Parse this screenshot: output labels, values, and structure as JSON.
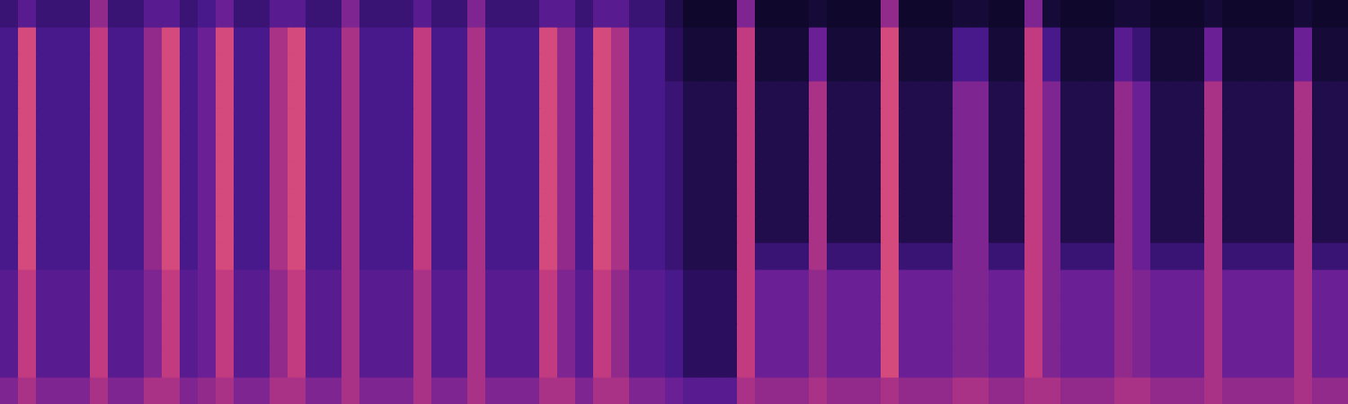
{
  "chart_data": {
    "type": "heatmap",
    "x": [
      0,
      1,
      2,
      3,
      4,
      5,
      6,
      7,
      8,
      9,
      10,
      11,
      12,
      13,
      14,
      15,
      16,
      17,
      18,
      19,
      20,
      21,
      22,
      23,
      24,
      25,
      26,
      27,
      28,
      29,
      30,
      31,
      32,
      33,
      34,
      35,
      36,
      37,
      38,
      39,
      40,
      41,
      42,
      43,
      44,
      45,
      46,
      47,
      48,
      49,
      50,
      51,
      52,
      53,
      54,
      55,
      56,
      57,
      58,
      59,
      60,
      61,
      62,
      63,
      64,
      65,
      66,
      67,
      68,
      69,
      70,
      71,
      72,
      73,
      74
    ],
    "y": [
      0,
      1,
      2,
      3,
      4,
      5,
      6,
      7,
      8,
      9,
      10,
      11,
      12,
      13,
      14
    ],
    "xlim": [
      -0.5,
      74.5
    ],
    "ylim": [
      -0.5,
      14.5
    ],
    "zlim": [
      0,
      10
    ],
    "grid": false,
    "tick_labels": false,
    "cells": [
      [
        4.5,
        5.5,
        4.5,
        4.5,
        4.5,
        5.5,
        4.5,
        4.5,
        5.5,
        5.5,
        4.5,
        5,
        5.5,
        4.5,
        4.5,
        5.5,
        5.5,
        4.5,
        4.5,
        5.5,
        4.5,
        4.5,
        4.5,
        5.5,
        4.5,
        4.5,
        5.5,
        4.5,
        4.5,
        4.5,
        5.5,
        5.5,
        4.5,
        5.5,
        5.5,
        4.5,
        4.5,
        4,
        3.5,
        3.5,
        3.5,
        5.5,
        5,
        5,
        5,
        5.5,
        5,
        5,
        5,
        5.5,
        5,
        5,
        5,
        5.5,
        5.5,
        5,
        5,
        5.5,
        5.5,
        5,
        5,
        5,
        5.5,
        5.5,
        5,
        5,
        5,
        5.5,
        5,
        5,
        5,
        5,
        5.5,
        5,
        5
      ],
      [
        3.5,
        6,
        3.5,
        3.5,
        3.5,
        6,
        3.5,
        3.5,
        4.5,
        6,
        3.5,
        4,
        6,
        3.5,
        3.5,
        5,
        6,
        3.5,
        3.5,
        5.5,
        3.5,
        3.5,
        3.5,
        5.5,
        3.5,
        3.5,
        5.5,
        3.5,
        3.5,
        3.5,
        6,
        4.5,
        3.5,
        6,
        5,
        3.5,
        3.5,
        3,
        2,
        2,
        2,
        6,
        4,
        4,
        4,
        5,
        4,
        4,
        4,
        6.5,
        4,
        4,
        4,
        4.5,
        4.5,
        4,
        4,
        6,
        4.5,
        4,
        4,
        4,
        5,
        4.5,
        4,
        4,
        4,
        5.5,
        4,
        4,
        4,
        4,
        5.5,
        4,
        4
      ],
      [
        3.5,
        6,
        3.5,
        3.5,
        3.5,
        6,
        3.5,
        3.5,
        4.5,
        6,
        3.5,
        4,
        6,
        3.5,
        3.5,
        5,
        6,
        3.5,
        3.5,
        5.5,
        3.5,
        3.5,
        3.5,
        5.5,
        3.5,
        3.5,
        5.5,
        3.5,
        3.5,
        3.5,
        6,
        4.5,
        3.5,
        6,
        5,
        3.5,
        3.5,
        3,
        2,
        2,
        2,
        6,
        4,
        4,
        4,
        5,
        4,
        4,
        4,
        6.5,
        4,
        4,
        4,
        4.5,
        4.5,
        4,
        4,
        6,
        4.5,
        4,
        4,
        4,
        5,
        4.5,
        4,
        4,
        4,
        5.5,
        4,
        4,
        4,
        4,
        5.5,
        4,
        4
      ],
      [
        3.5,
        6,
        3.5,
        3.5,
        3.5,
        6,
        3.5,
        3.5,
        4.5,
        6,
        3.5,
        4,
        6,
        3.5,
        3.5,
        5,
        6,
        3.5,
        3.5,
        5.5,
        3.5,
        3.5,
        3.5,
        5.5,
        3.5,
        3.5,
        5.5,
        3.5,
        3.5,
        3.5,
        6,
        4.5,
        3.5,
        6,
        5,
        3.5,
        3.5,
        3,
        2,
        2,
        2,
        6,
        4,
        4,
        4,
        5,
        4,
        4,
        4,
        6.5,
        4,
        4,
        4,
        4.5,
        4.5,
        4,
        4,
        6,
        4.5,
        4,
        4,
        4,
        5,
        4.5,
        4,
        4,
        4,
        5.5,
        4,
        4,
        4,
        4,
        5.5,
        4,
        4
      ],
      [
        3.5,
        6,
        3.5,
        3.5,
        3.5,
        6,
        3.5,
        3.5,
        4.5,
        6,
        3.5,
        4,
        6,
        3.5,
        3.5,
        5,
        6,
        3.5,
        3.5,
        5.5,
        3.5,
        3.5,
        3.5,
        5.5,
        3.5,
        3.5,
        5.5,
        3.5,
        3.5,
        3.5,
        6,
        4.5,
        3.5,
        6,
        5,
        3.5,
        3.5,
        3,
        2,
        2,
        2,
        6,
        4,
        4,
        4,
        5,
        4,
        4,
        4,
        6.5,
        4,
        4,
        4,
        4.5,
        4.5,
        4,
        4,
        6,
        4.5,
        4,
        4,
        4,
        5,
        4.5,
        4,
        4,
        4,
        5.5,
        4,
        4,
        4,
        4,
        5.5,
        4,
        4
      ],
      [
        3,
        6.5,
        3,
        3,
        3,
        6,
        3,
        3,
        5,
        6.5,
        3,
        4,
        6.5,
        3,
        3,
        5.5,
        6.5,
        3,
        3,
        5.5,
        3,
        3,
        3,
        6,
        3,
        3,
        5.5,
        3,
        3,
        3,
        6.5,
        5,
        3,
        6.5,
        5.5,
        3,
        3,
        2.5,
        1.5,
        1.5,
        1.5,
        6,
        2.5,
        2.5,
        2.5,
        5.5,
        2.5,
        2.5,
        2.5,
        6.5,
        2.5,
        2.5,
        2.5,
        4.5,
        4.5,
        2.5,
        2.5,
        6,
        4.5,
        2.5,
        2.5,
        2.5,
        5,
        4,
        2.5,
        2.5,
        2.5,
        5.5,
        2.5,
        2.5,
        2.5,
        2.5,
        5.5,
        2.5,
        2.5
      ],
      [
        3,
        6.5,
        3,
        3,
        3,
        6,
        3,
        3,
        5,
        6.5,
        3,
        4,
        6.5,
        3,
        3,
        5.5,
        6.5,
        3,
        3,
        5.5,
        3,
        3,
        3,
        6,
        3,
        3,
        5.5,
        3,
        3,
        3,
        6.5,
        5,
        3,
        6.5,
        5.5,
        3,
        3,
        2.5,
        1.5,
        1.5,
        1.5,
        6,
        1.5,
        1.5,
        1.5,
        5.5,
        1.5,
        1.5,
        1.5,
        6.5,
        1.5,
        1.5,
        1.5,
        4.5,
        4.5,
        1.5,
        1.5,
        6,
        4.5,
        1.5,
        1.5,
        1.5,
        5,
        4,
        1.5,
        1.5,
        1.5,
        5.5,
        1.5,
        1.5,
        1.5,
        1.5,
        5.5,
        1.5,
        1.5
      ],
      [
        3,
        6.5,
        3,
        3,
        3,
        6,
        3,
        3,
        5,
        6.5,
        3,
        4,
        6.5,
        3,
        3,
        5.5,
        6.5,
        3,
        3,
        5.5,
        3,
        3,
        3,
        6,
        3,
        3,
        5.5,
        3,
        3,
        3,
        6.5,
        5,
        3,
        6.5,
        5.5,
        3,
        3,
        2.5,
        1.5,
        1.5,
        1.5,
        6,
        1.5,
        1.5,
        1.5,
        5.5,
        1.5,
        1.5,
        1.5,
        6.5,
        1.5,
        1.5,
        1.5,
        4.5,
        4.5,
        1.5,
        1.5,
        6,
        4.5,
        1.5,
        1.5,
        1.5,
        5,
        4,
        1.5,
        1.5,
        1.5,
        5.5,
        1.5,
        1.5,
        1.5,
        1.5,
        5.5,
        1.5,
        1.5
      ],
      [
        3,
        6.5,
        3,
        3,
        3,
        6,
        3,
        3,
        5,
        6.5,
        3,
        4,
        6.5,
        3,
        3,
        5.5,
        6.5,
        3,
        3,
        5.5,
        3,
        3,
        3,
        6,
        3,
        3,
        5.5,
        3,
        3,
        3,
        6.5,
        5,
        3,
        6.5,
        5.5,
        3,
        3,
        2.5,
        1.5,
        1.5,
        1.5,
        6,
        1.5,
        1.5,
        1.5,
        5.5,
        1.5,
        1.5,
        1.5,
        6.5,
        1.5,
        1.5,
        1.5,
        4.5,
        4.5,
        1.5,
        1.5,
        6,
        4.5,
        1.5,
        1.5,
        1.5,
        5,
        4,
        1.5,
        1.5,
        1.5,
        5.5,
        1.5,
        1.5,
        1.5,
        1.5,
        5.5,
        1.5,
        1.5
      ],
      [
        3,
        6.5,
        3,
        3,
        3,
        6,
        3,
        3,
        5,
        6.5,
        3,
        4,
        6.5,
        3,
        3,
        5.5,
        6.5,
        3,
        3,
        5.5,
        3,
        3,
        3,
        6,
        3,
        3,
        5.5,
        3,
        3,
        3,
        6.5,
        5,
        3,
        6.5,
        5.5,
        3,
        3,
        2.5,
        1.5,
        1.5,
        1.5,
        6,
        1.5,
        1.5,
        1.5,
        5.5,
        1.5,
        1.5,
        1.5,
        6.5,
        1.5,
        1.5,
        1.5,
        4.5,
        4.5,
        1.5,
        1.5,
        6,
        4.5,
        1.5,
        1.5,
        1.5,
        5,
        4,
        1.5,
        1.5,
        1.5,
        5.5,
        1.5,
        1.5,
        1.5,
        1.5,
        5.5,
        1.5,
        1.5
      ],
      [
        3,
        6.5,
        3,
        3,
        3,
        6,
        3,
        3,
        5,
        6.5,
        3,
        4,
        6.5,
        3,
        3,
        5.5,
        6.5,
        3,
        3,
        5.5,
        3,
        3,
        3,
        6,
        3,
        3,
        5.5,
        3,
        3,
        3,
        6.5,
        5,
        3,
        6.5,
        5.5,
        3,
        3,
        2.5,
        1.5,
        1.5,
        1.5,
        6,
        1.5,
        1.5,
        1.5,
        5.5,
        1.5,
        1.5,
        1.5,
        6.5,
        1.5,
        1.5,
        1.5,
        4.5,
        4.5,
        1.5,
        1.5,
        6,
        4.5,
        1.5,
        1.5,
        1.5,
        5,
        4,
        1.5,
        1.5,
        1.5,
        5.5,
        1.5,
        1.5,
        1.5,
        1.5,
        5.5,
        1.5,
        1.5
      ],
      [
        3,
        6.5,
        3,
        3,
        3,
        6,
        3,
        3,
        5,
        6.5,
        3,
        4,
        6.5,
        3,
        3,
        5.5,
        6.5,
        3,
        3,
        5.5,
        3,
        3,
        3,
        6,
        3,
        3,
        5.5,
        3,
        3,
        3,
        6.5,
        5,
        3,
        6.5,
        5.5,
        3,
        3,
        2.5,
        1.5,
        1.5,
        1.5,
        6,
        1.5,
        1.5,
        1.5,
        5.5,
        1.5,
        1.5,
        1.5,
        6.5,
        1.5,
        1.5,
        1.5,
        4.5,
        4.5,
        1.5,
        1.5,
        6,
        4.5,
        1.5,
        1.5,
        1.5,
        5,
        4,
        1.5,
        1.5,
        1.5,
        5.5,
        1.5,
        1.5,
        1.5,
        1.5,
        5.5,
        1.5,
        1.5
      ],
      [
        3,
        6.5,
        3,
        3,
        3,
        6,
        3,
        3,
        5,
        6.5,
        3,
        4,
        6.5,
        3,
        3,
        5.5,
        6.5,
        3,
        3,
        5.5,
        3,
        3,
        3,
        6,
        3,
        3,
        5.5,
        3,
        3,
        3,
        6.5,
        5,
        3,
        6.5,
        5.5,
        3,
        3,
        2,
        1,
        1,
        1,
        6,
        1,
        1,
        1,
        4,
        1,
        1,
        1,
        6.5,
        1,
        1,
        1,
        3,
        3,
        1,
        1,
        6,
        3,
        1,
        1,
        1,
        3.5,
        2.5,
        1,
        1,
        1,
        4,
        1,
        1,
        1,
        1,
        4,
        1,
        1
      ],
      [
        3,
        6.5,
        3,
        3,
        3,
        6,
        3,
        3,
        5,
        6.5,
        3,
        4,
        6.5,
        3,
        3,
        5.5,
        6.5,
        3,
        3,
        5.5,
        3,
        3,
        3,
        6,
        3,
        3,
        5.5,
        3,
        3,
        3,
        6.5,
        5,
        3,
        6.5,
        5.5,
        3,
        3,
        2,
        1,
        1,
        1,
        6,
        1,
        1,
        1,
        4,
        1,
        1,
        1,
        6.5,
        1,
        1,
        1,
        3,
        3,
        1,
        1,
        6,
        3,
        1,
        1,
        1,
        3.5,
        2.5,
        1,
        1,
        1,
        4,
        1,
        1,
        1,
        1,
        4,
        1,
        1
      ],
      [
        2.5,
        3.5,
        2.5,
        2.5,
        2.5,
        5,
        2.5,
        2.5,
        3.5,
        3.5,
        2.5,
        3,
        4,
        2.5,
        2.5,
        3.5,
        3.5,
        2.5,
        2.5,
        4.5,
        2.5,
        2.5,
        2.5,
        3.5,
        2.5,
        2.5,
        4.5,
        2.5,
        2.5,
        2.5,
        3.5,
        3.5,
        2.5,
        3.5,
        3.5,
        2.5,
        2.5,
        1.5,
        0.5,
        0.5,
        0.5,
        4.5,
        0.5,
        0.5,
        0.5,
        1,
        0.5,
        0.5,
        0.5,
        5,
        0.5,
        0.5,
        0.5,
        1,
        1,
        0.5,
        0.5,
        4.5,
        1,
        0.5,
        0.5,
        0.5,
        1,
        1,
        0.5,
        0.5,
        0.5,
        1,
        0.5,
        0.5,
        0.5,
        0.5,
        1,
        0.5,
        0.5
      ]
    ]
  }
}
